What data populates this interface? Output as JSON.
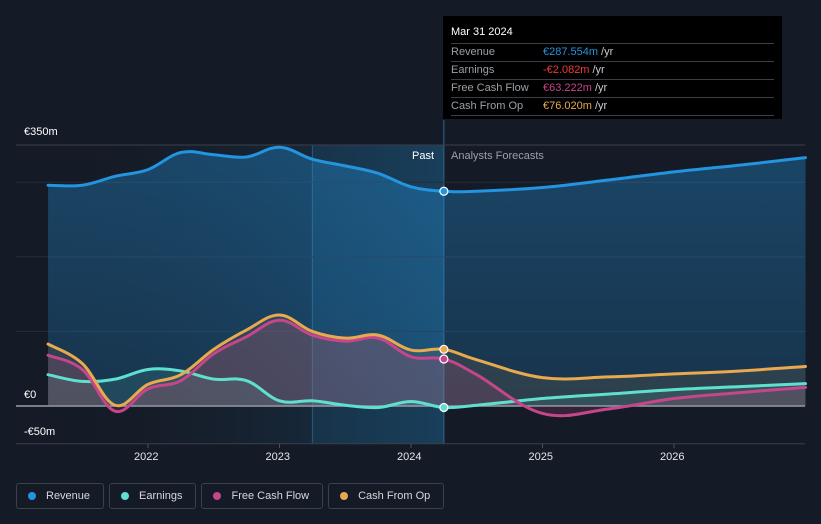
{
  "tooltip": {
    "date": "Mar 31 2024",
    "rows": [
      {
        "label": "Revenue",
        "value": "€287.554m",
        "unit": "/yr",
        "color": "#2394df"
      },
      {
        "label": "Earnings",
        "value": "-€2.082m",
        "unit": "/yr",
        "color": "#ee3a3a"
      },
      {
        "label": "Free Cash Flow",
        "value": "€63.222m",
        "unit": "/yr",
        "color": "#c5468b"
      },
      {
        "label": "Cash From Op",
        "value": "€76.020m",
        "unit": "/yr",
        "color": "#e8a94f"
      }
    ]
  },
  "sections": {
    "past": "Past",
    "forecast": "Analysts Forecasts"
  },
  "legend": [
    {
      "label": "Revenue",
      "color": "#2394df"
    },
    {
      "label": "Earnings",
      "color": "#5fe0cf"
    },
    {
      "label": "Free Cash Flow",
      "color": "#c5468b"
    },
    {
      "label": "Cash From Op",
      "color": "#e8a94f"
    }
  ],
  "chart_data": {
    "type": "line",
    "title": "",
    "xlabel": "",
    "ylabel": "",
    "ylim": [
      -50,
      350
    ],
    "xlim": [
      2021.24,
      2027.0
    ],
    "y_ticks": [
      {
        "value": 350,
        "label": "€350m"
      },
      {
        "value": 0,
        "label": "€0"
      },
      {
        "value": -50,
        "label": "-€50m"
      }
    ],
    "x_ticks": [
      {
        "value": 2022,
        "label": "2022"
      },
      {
        "value": 2023,
        "label": "2023"
      },
      {
        "value": 2024,
        "label": "2024"
      },
      {
        "value": 2025,
        "label": "2025"
      },
      {
        "value": 2026,
        "label": "2026"
      }
    ],
    "grid": true,
    "past_end": 2024.25,
    "highlight_range": [
      2023.25,
      2024.25
    ],
    "series": [
      {
        "name": "Revenue",
        "color": "#2394df",
        "x": [
          2021.24,
          2021.5,
          2021.75,
          2022.0,
          2022.25,
          2022.5,
          2022.75,
          2023.0,
          2023.25,
          2023.5,
          2023.75,
          2024.0,
          2024.25,
          2024.5,
          2025.0,
          2025.5,
          2026.0,
          2026.5,
          2027.0
        ],
        "values": [
          296,
          296,
          308,
          317,
          340,
          337,
          334,
          347,
          331,
          322,
          312,
          294,
          288,
          288,
          293,
          303,
          314,
          323,
          333
        ]
      },
      {
        "name": "Earnings",
        "color": "#5fe0cf",
        "x": [
          2021.24,
          2021.5,
          2021.75,
          2022.0,
          2022.25,
          2022.5,
          2022.75,
          2023.0,
          2023.25,
          2023.5,
          2023.75,
          2024.0,
          2024.25,
          2024.5,
          2025.0,
          2025.5,
          2026.0,
          2026.5,
          2027.0
        ],
        "values": [
          42,
          33,
          36,
          49,
          47,
          36,
          34,
          7,
          7,
          1,
          -2,
          6,
          -2,
          1,
          10,
          16,
          22,
          26,
          30
        ]
      },
      {
        "name": "Free Cash Flow",
        "color": "#c5468b",
        "x": [
          2021.24,
          2021.5,
          2021.75,
          2022.0,
          2022.25,
          2022.5,
          2022.75,
          2023.0,
          2023.25,
          2023.5,
          2023.75,
          2024.0,
          2024.25,
          2024.5,
          2025.0,
          2025.5,
          2026.0,
          2026.5,
          2027.0
        ],
        "values": [
          68,
          49,
          -7,
          23,
          34,
          70,
          93,
          115,
          95,
          87,
          91,
          66,
          63,
          42,
          -10,
          -4,
          10,
          18,
          25
        ]
      },
      {
        "name": "Cash From Op",
        "color": "#e8a94f",
        "x": [
          2021.24,
          2021.5,
          2021.75,
          2022.0,
          2022.25,
          2022.5,
          2022.75,
          2023.0,
          2023.25,
          2023.5,
          2023.75,
          2024.0,
          2024.25,
          2024.5,
          2025.0,
          2025.5,
          2026.0,
          2026.5,
          2027.0
        ],
        "values": [
          83,
          57,
          1,
          29,
          42,
          76,
          102,
          122,
          100,
          91,
          95,
          75,
          76,
          62,
          38,
          39,
          43,
          47,
          53
        ]
      }
    ],
    "markers_at": 2024.25
  }
}
